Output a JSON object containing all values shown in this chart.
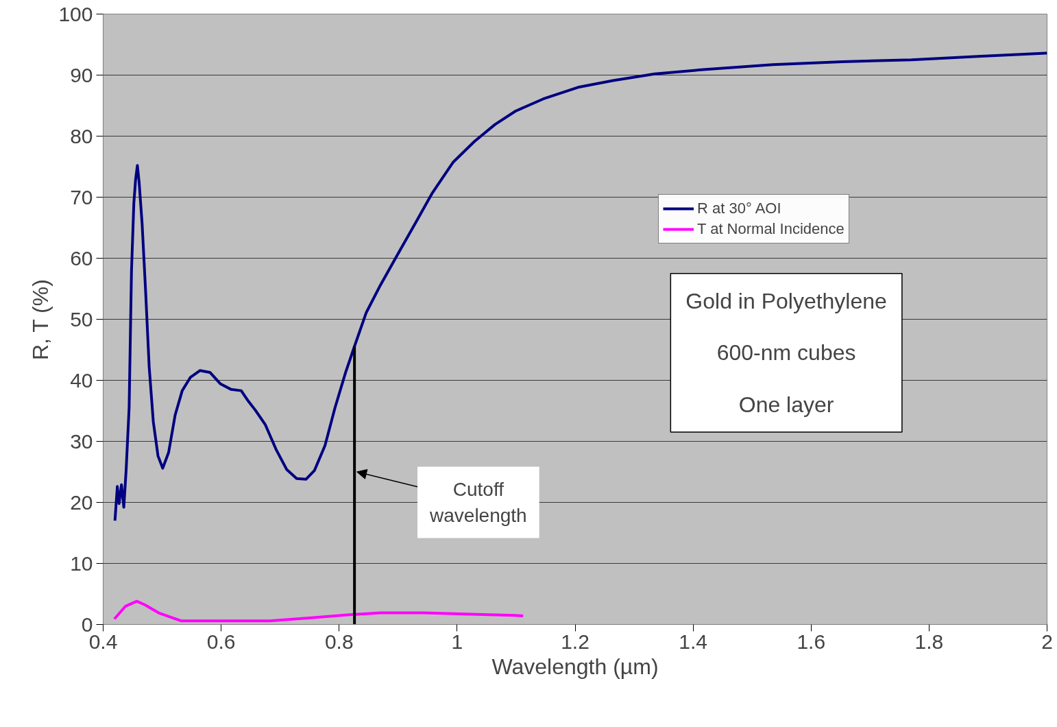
{
  "chart_data": {
    "type": "line",
    "xlabel": "Wavelength (µm)",
    "ylabel": "R, T (%)",
    "xlim": [
      0.4,
      2
    ],
    "xticks": [
      0.4,
      0.6,
      0.8,
      1,
      1.2,
      1.4,
      1.6,
      1.8,
      2
    ],
    "ylim": [
      0,
      100
    ],
    "yticks": [
      0,
      10,
      20,
      30,
      40,
      50,
      60,
      70,
      80,
      90,
      100
    ],
    "grid": "y",
    "legend": "top right",
    "line_style": "solid",
    "marker": "none",
    "series": [
      {
        "name": "R at 30° AOI",
        "color": "#000080",
        "x": [
          0.42,
          0.424,
          0.427,
          0.431,
          0.435,
          0.439,
          0.444,
          0.448,
          0.452,
          0.455,
          0.458,
          0.461,
          0.466,
          0.472,
          0.478,
          0.485,
          0.493,
          0.501,
          0.511,
          0.522,
          0.534,
          0.548,
          0.564,
          0.581,
          0.599,
          0.617,
          0.634,
          0.646,
          0.658,
          0.675,
          0.693,
          0.711,
          0.728,
          0.744,
          0.758,
          0.776,
          0.793,
          0.811,
          0.824,
          0.846,
          0.87,
          0.899,
          0.929,
          0.958,
          0.993,
          1.029,
          1.064,
          1.099,
          1.146,
          1.205,
          1.264,
          1.335,
          1.417,
          1.535,
          1.653,
          1.77,
          1.888,
          2.0
        ],
        "values": [
          17.0,
          22.6,
          19.8,
          22.9,
          19.2,
          25.4,
          35.5,
          57.8,
          69.0,
          72.9,
          75.2,
          72.4,
          65.7,
          54.5,
          42.2,
          33.2,
          27.6,
          25.6,
          28.2,
          34.3,
          38.3,
          40.5,
          41.6,
          41.3,
          39.4,
          38.5,
          38.3,
          36.6,
          35.1,
          32.7,
          28.7,
          25.4,
          23.9,
          23.8,
          25.2,
          29.3,
          35.5,
          41.3,
          45.0,
          51.1,
          55.6,
          60.6,
          65.7,
          70.7,
          75.7,
          79.1,
          81.9,
          84.1,
          86.1,
          88.0,
          89.1,
          90.2,
          90.9,
          91.7,
          92.2,
          92.5,
          93.1,
          93.6
        ]
      },
      {
        "name": "T at Normal Incidence",
        "color": "#ff00ff",
        "x": [
          0.419,
          0.438,
          0.457,
          0.471,
          0.494,
          0.532,
          0.612,
          0.683,
          0.753,
          0.819,
          0.871,
          0.942,
          1.012,
          1.097,
          1.112
        ],
        "values": [
          0.9,
          3.0,
          3.8,
          3.2,
          1.9,
          0.6,
          0.6,
          0.6,
          1.1,
          1.6,
          1.9,
          1.9,
          1.7,
          1.5,
          1.4
        ]
      }
    ],
    "ref_lines": [
      {
        "axis": "x",
        "value": 0.826,
        "color": "#000000"
      }
    ],
    "annotations": [
      {
        "text": "Cutoff\nwavelength",
        "x": 0.826,
        "y": 25
      },
      "Gold in Polyethylene\n\n600-nm cubes\n\nOne layer"
    ]
  }
}
